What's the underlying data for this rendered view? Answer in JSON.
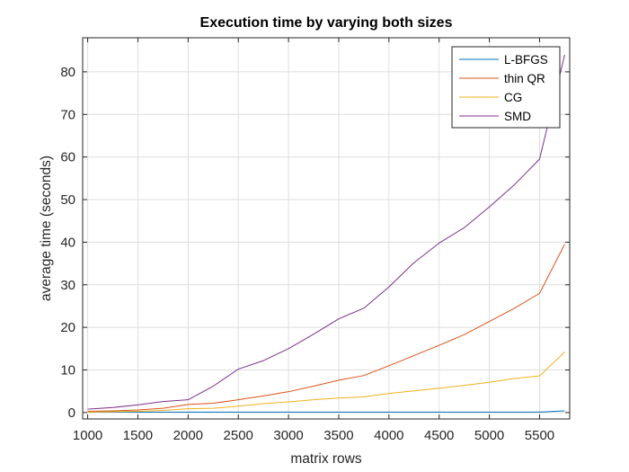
{
  "chart_data": {
    "type": "line",
    "title": "Execution time by varying both sizes",
    "xlabel": "matrix rows",
    "ylabel": "average time (seconds)",
    "xlim": [
      950,
      5800
    ],
    "ylim": [
      -1.5,
      88
    ],
    "xticks": [
      1000,
      1500,
      2000,
      2500,
      3000,
      3500,
      4000,
      4500,
      5000,
      5500
    ],
    "yticks": [
      0,
      10,
      20,
      30,
      40,
      50,
      60,
      70,
      80
    ],
    "grid": true,
    "legend_position": "top-right",
    "x": [
      1000,
      1250,
      1500,
      1750,
      2000,
      2250,
      2500,
      2750,
      3000,
      3250,
      3500,
      3750,
      4000,
      4250,
      4500,
      4750,
      5000,
      5250,
      5500,
      5750
    ],
    "series": [
      {
        "name": "L-BFGS",
        "color": "#0072BD",
        "values": [
          0.1,
          0.1,
          0.1,
          0.1,
          0.1,
          0.1,
          0.1,
          0.1,
          0.1,
          0.1,
          0.1,
          0.1,
          0.1,
          0.1,
          0.1,
          0.1,
          0.1,
          0.1,
          0.1,
          0.4
        ]
      },
      {
        "name": "thin QR",
        "color": "#D95319",
        "values": [
          0.3,
          0.4,
          0.6,
          1.0,
          1.9,
          2.2,
          3.0,
          3.9,
          4.9,
          6.2,
          7.6,
          8.7,
          11.0,
          13.4,
          15.8,
          18.3,
          21.4,
          24.5,
          28.0,
          39.5
        ]
      },
      {
        "name": "CG",
        "color": "#EDB120",
        "values": [
          0.1,
          0.2,
          0.3,
          0.5,
          0.9,
          1.0,
          1.5,
          2.1,
          2.5,
          3.0,
          3.4,
          3.7,
          4.5,
          5.1,
          5.7,
          6.4,
          7.1,
          8.0,
          8.6,
          14.2
        ]
      },
      {
        "name": "SMD",
        "color": "#7E2F8E",
        "values": [
          0.8,
          1.2,
          1.8,
          2.6,
          3.0,
          6.2,
          10.2,
          12.2,
          15.0,
          18.4,
          22.0,
          24.5,
          29.5,
          35.2,
          39.8,
          43.4,
          48.3,
          53.5,
          59.5,
          84.0
        ]
      }
    ]
  }
}
